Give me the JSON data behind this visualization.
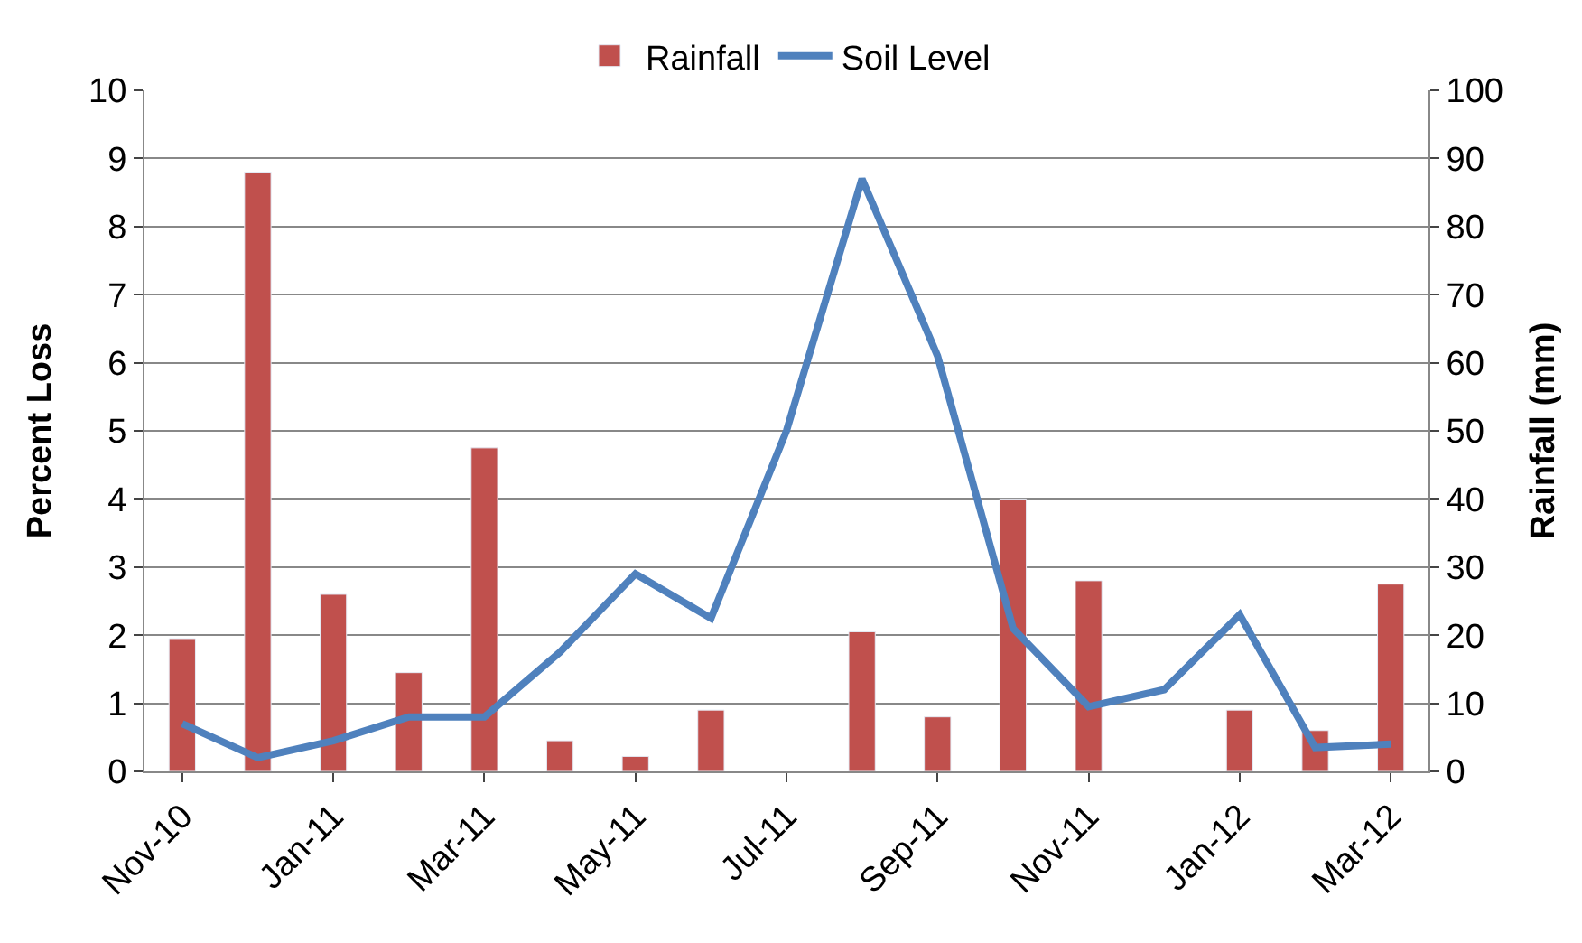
{
  "chart_data": {
    "type": "bar",
    "categories": [
      "Nov-10",
      null,
      "Jan-11",
      null,
      "Mar-11",
      null,
      "May-11",
      null,
      "Jul-11",
      null,
      "Sep-11",
      null,
      "Nov-11",
      null,
      "Jan-12",
      null,
      "Mar-12"
    ],
    "ylabel": "Percent Loss",
    "y2label": "Rainfall (mm)",
    "ylim": [
      0,
      10
    ],
    "yticks": [
      0,
      1,
      2,
      3,
      4,
      5,
      6,
      7,
      8,
      9,
      10
    ],
    "y2lim": [
      0,
      100
    ],
    "y2ticks": [
      0,
      10,
      20,
      30,
      40,
      50,
      60,
      70,
      80,
      90,
      100
    ],
    "grid": "y",
    "legend": "top",
    "marker": "none",
    "line_style": "solid",
    "series": [
      {
        "name": "Rainfall",
        "axis": "y2",
        "color": "#c0504d",
        "values": [
          19.5,
          88,
          26,
          14.5,
          47.5,
          4.5,
          2.2,
          9,
          null,
          20.5,
          8,
          40,
          28,
          null,
          9,
          6,
          27.5
        ]
      },
      {
        "name": "Soil Level",
        "type": "line",
        "color": "#4f81bd",
        "values": [
          0.7,
          0.2,
          0.45,
          0.8,
          0.8,
          1.75,
          2.9,
          2.25,
          5.0,
          8.7,
          6.1,
          2.1,
          0.95,
          1.2,
          2.3,
          0.35,
          0.4
        ]
      }
    ]
  }
}
